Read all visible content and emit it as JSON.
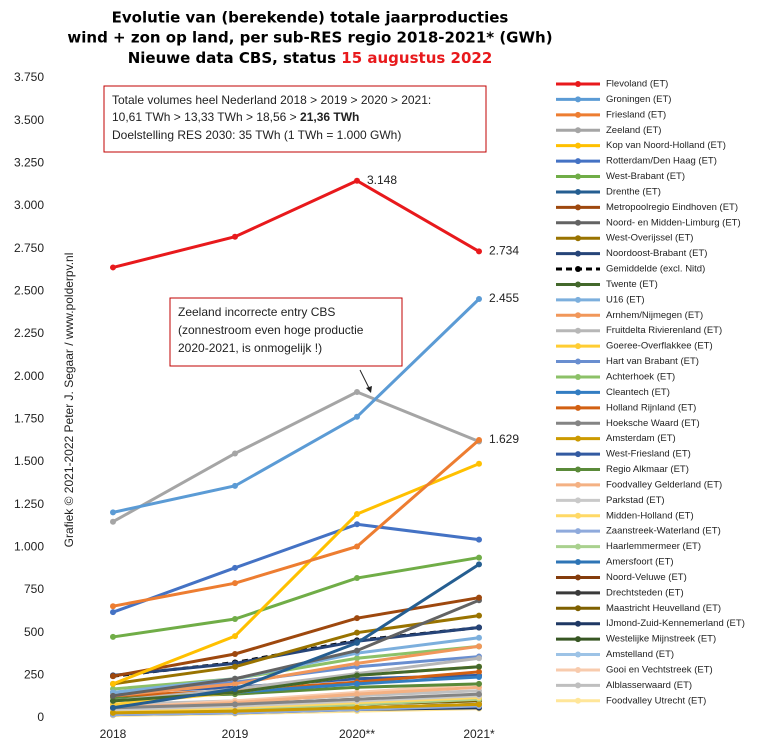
{
  "chart_data": {
    "type": "line",
    "title": [
      "Evolutie van (berekende) totale jaarproducties",
      "wind + zon op land, per sub-RES regio 2018-2021* (GWh)"
    ],
    "subtitle": "Nieuwe data CBS, status",
    "subtitle_date": "15 augustus 2022",
    "watermark": "Grafiek © 2021-2022 Peter J. Segaar / www.polderpv.nl",
    "annotations": [
      [
        "Totale volumes heel Nederland 2018 > 2019 > 2020 > 2021:",
        "10,61 TWh > 13,33 TWh > 18,56 >",
        "21,36 TWh",
        "Doelstelling RES 2030: 35 TWh (1 TWh = 1.000 GWh)"
      ],
      [
        "Zeeland incorrecte entry CBS",
        "(zonnestroom even hoge productie",
        "2020-2021,  is onmogelijk !)"
      ]
    ],
    "categories": [
      "2018",
      "2019",
      "2020**",
      "2021*"
    ],
    "ylim": [
      0,
      3750
    ],
    "yticks": [
      0,
      250,
      500,
      750,
      {
        "value": 1000,
        "label": "1.000"
      },
      {
        "value": 1250,
        "label": "1.250"
      },
      {
        "value": 1500,
        "label": "1.500"
      },
      {
        "value": 1750,
        "label": "1.750"
      },
      {
        "value": 2000,
        "label": "2.000"
      },
      {
        "value": 2250,
        "label": "2.250"
      },
      {
        "value": 2500,
        "label": "2.500"
      },
      {
        "value": 2750,
        "label": "2.750"
      },
      {
        "value": 3000,
        "label": "3.000"
      },
      {
        "value": 3250,
        "label": "3.250"
      },
      {
        "value": 3500,
        "label": "3.500"
      },
      {
        "value": 3750,
        "label": "3.750"
      }
    ],
    "series": [
      {
        "name": "Flevoland (ET)",
        "color": "#e8191c",
        "values": [
          2640,
          2820,
          3148,
          2734
        ],
        "value_labels": [
          null,
          null,
          "3.148",
          "2.734"
        ]
      },
      {
        "name": "Groningen (ET)",
        "color": "#5b9bd5",
        "values": [
          1205,
          1360,
          1765,
          2455
        ],
        "value_labels": [
          null,
          null,
          null,
          "2.455"
        ]
      },
      {
        "name": "Friesland (ET)",
        "color": "#ed7d31",
        "values": [
          655,
          790,
          1005,
          1629
        ],
        "value_labels": [
          null,
          null,
          null,
          "1.629"
        ]
      },
      {
        "name": "Zeeland (ET)",
        "color": "#a5a5a5",
        "values": [
          1150,
          1550,
          1910,
          1620
        ]
      },
      {
        "name": "Kop van Noord-Holland (ET)",
        "color": "#ffc000",
        "values": [
          200,
          480,
          1195,
          1490
        ]
      },
      {
        "name": "Rotterdam/Den Haag (ET)",
        "color": "#4472c4",
        "values": [
          620,
          880,
          1135,
          1045
        ]
      },
      {
        "name": "West-Brabant (ET)",
        "color": "#70ad47",
        "values": [
          475,
          580,
          820,
          940
        ]
      },
      {
        "name": "Drenthe (ET)",
        "color": "#255e91",
        "values": [
          60,
          170,
          440,
          900
        ]
      },
      {
        "name": "Metropoolregio Eindhoven (ET)",
        "color": "#9e480e",
        "values": [
          245,
          375,
          585,
          705
        ]
      },
      {
        "name": "Noord- en Midden-Limburg (ET)",
        "color": "#636363",
        "values": [
          130,
          230,
          395,
          690
        ]
      },
      {
        "name": "West-Overijssel (ET)",
        "color": "#997300",
        "values": [
          200,
          300,
          500,
          600
        ]
      },
      {
        "name": "Noordoost-Brabant (ET)",
        "color": "#264478",
        "values": [
          250,
          320,
          450,
          530
        ]
      },
      {
        "name": "Gemiddelde (excl. Nitd)",
        "color": "#000000",
        "dash": true,
        "values": [
          245,
          325,
          455,
          530
        ]
      },
      {
        "name": "Twente (ET)",
        "color": "#43682b",
        "values": [
          100,
          150,
          250,
          300
        ]
      },
      {
        "name": "U16 (ET)",
        "color": "#7cafdd",
        "values": [
          150,
          230,
          380,
          470
        ]
      },
      {
        "name": "Arnhem/Nijmegen (ET)",
        "color": "#f1975a",
        "values": [
          130,
          200,
          320,
          420
        ]
      },
      {
        "name": "Fruitdelta Rivierenland (ET)",
        "color": "#b7b7b7",
        "values": [
          100,
          170,
          260,
          350
        ]
      },
      {
        "name": "Goeree-Overflakkee (ET)",
        "color": "#ffcd33",
        "values": [
          80,
          150,
          250,
          300
        ]
      },
      {
        "name": "Hart van Brabant (ET)",
        "color": "#698ed0",
        "values": [
          150,
          210,
          300,
          360
        ]
      },
      {
        "name": "Achterhoek (ET)",
        "color": "#8cc168",
        "values": [
          170,
          230,
          350,
          420
        ]
      },
      {
        "name": "Cleantech (ET)",
        "color": "#327dc2",
        "values": [
          100,
          150,
          200,
          240
        ]
      },
      {
        "name": "Holland Rijnland (ET)",
        "color": "#d26012",
        "values": [
          130,
          160,
          210,
          270
        ]
      },
      {
        "name": "Hoeksche Waard (ET)",
        "color": "#848484",
        "values": [
          60,
          80,
          110,
          140
        ]
      },
      {
        "name": "Amsterdam (ET)",
        "color": "#cc9a00",
        "values": [
          30,
          40,
          60,
          80
        ]
      },
      {
        "name": "West-Friesland (ET)",
        "color": "#335aa1",
        "values": [
          150,
          180,
          230,
          250
        ]
      },
      {
        "name": "Regio Alkmaar (ET)",
        "color": "#5a8a39",
        "values": [
          120,
          140,
          180,
          200
        ]
      },
      {
        "name": "Foodvalley Gelderland (ET)",
        "color": "#f4b183",
        "values": [
          60,
          90,
          140,
          180
        ]
      },
      {
        "name": "Parkstad (ET)",
        "color": "#c9c9c9",
        "values": [
          50,
          70,
          100,
          130
        ]
      },
      {
        "name": "Midden-Holland (ET)",
        "color": "#ffd966",
        "values": [
          40,
          60,
          90,
          120
        ]
      },
      {
        "name": "Zaanstreek-Waterland (ET)",
        "color": "#8faadc",
        "values": [
          20,
          30,
          50,
          70
        ]
      },
      {
        "name": "Haarlemmermeer (ET)",
        "color": "#a9d18e",
        "values": [
          30,
          50,
          80,
          110
        ]
      },
      {
        "name": "Amersfoort (ET)",
        "color": "#2e75b6",
        "values": [
          40,
          60,
          100,
          130
        ]
      },
      {
        "name": "Noord-Veluwe (ET)",
        "color": "#843c0c",
        "values": [
          60,
          80,
          110,
          130
        ]
      },
      {
        "name": "Drechtsteden (ET)",
        "color": "#3a3a3a",
        "values": [
          30,
          40,
          60,
          80
        ]
      },
      {
        "name": "Maastricht Heuvelland (ET)",
        "color": "#7f6000",
        "values": [
          40,
          55,
          80,
          100
        ]
      },
      {
        "name": "IJmond-Zuid-Kennemerland (ET)",
        "color": "#1f3864",
        "values": [
          20,
          30,
          50,
          60
        ]
      },
      {
        "name": "Westelijke Mijnstreek (ET)",
        "color": "#375623",
        "values": [
          50,
          70,
          90,
          110
        ]
      },
      {
        "name": "Amstelland (ET)",
        "color": "#9dc3e6",
        "values": [
          25,
          40,
          60,
          80
        ]
      },
      {
        "name": "Gooi en Vechtstreek (ET)",
        "color": "#f8cbad",
        "values": [
          60,
          100,
          150,
          200
        ]
      },
      {
        "name": "Alblasserwaard (ET)",
        "color": "#bfbfbf",
        "values": [
          80,
          100,
          130,
          160
        ]
      },
      {
        "name": "Foodvalley Utrecht (ET)",
        "color": "#ffe699",
        "values": [
          15,
          25,
          40,
          55
        ]
      }
    ]
  }
}
